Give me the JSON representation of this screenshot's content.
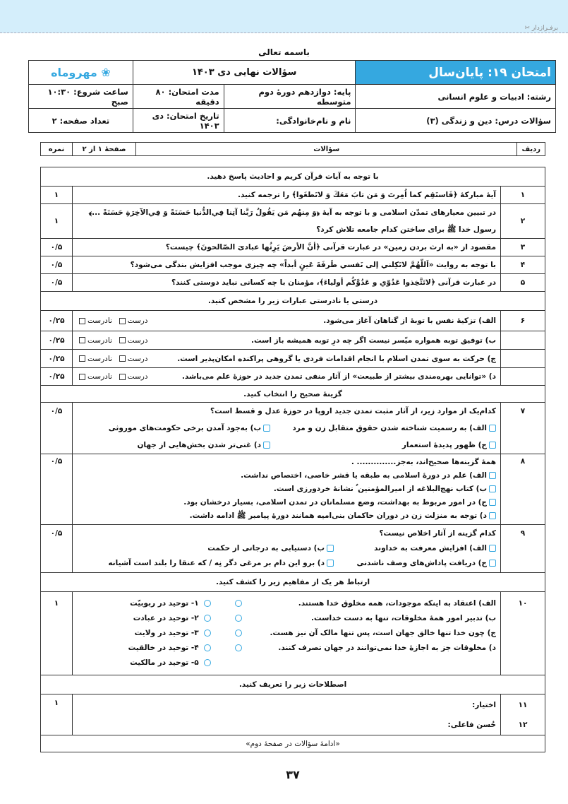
{
  "top_band": {
    "cut_label": "برفـرازدار",
    "icon": "scissors-icon"
  },
  "bismillah": "باسمه تعالی",
  "header": {
    "exam_title": "امتحان ۱۹: پایان‌سال",
    "subtitle": "سؤالات نهایی دی ۱۴۰۳",
    "logo": "مهروماه",
    "field": "رشته: ادبیات و علوم انسانی",
    "grade": "پایه: دوازدهم دورهٔ دوم متوسطه",
    "duration": "مدت امتحان: ۸۰ دقیقه",
    "start_time": "ساعت شروع: ۱۰:۳۰ صبح",
    "course": "سؤالات درس: دین و زندگی (۳)",
    "name": "نام و نام‌خانوادگی:",
    "date": "تاریخ امتحان: دی ۱۴۰۳",
    "pages": "تعداد صفحه: ۲"
  },
  "columns": {
    "row": "ردیف",
    "questions": "سؤالات",
    "page": "صفحهٔ ۱ از ۲",
    "score": "نمره"
  },
  "sections": {
    "s1": "با توجه به آیات قرآن کریم و احادیث پاسخ دهید.",
    "s2": "درستی یا نادرستی عبارات زیر را مشخص کنید.",
    "s3": "گزینهٔ صحیح را انتخاب کنید.",
    "s4": "ارتباط هر یک از مفاهیم زیر را کشف کنید.",
    "s5": "اصطلاحات زیر را تعریف کنید."
  },
  "tf_labels": {
    "true": "درست",
    "false": "نادرست"
  },
  "questions": {
    "q1": {
      "n": "۱",
      "text": "آیهٔ مبارکهٔ ﴿فَاستَقِم کما اُمِرتَ وَ مَن تابَ مَعَكَ وَ لاتَطغَوا﴾ را ترجمه کنید.",
      "score": "۱"
    },
    "q2": {
      "n": "۲",
      "text": "در تبیین معیارهای تمدّن اسلامی و با توجه به آیهٔ ﴿وَ مِنهُم مَن یَقُولُ رَبَّنا آتِنا فِي‌الدُّنیا حَسَنَةً وَ فِي‌الآخِرَةِ حَسَنَةً ...﴾ رسول خدا ﷺ برای ساختن کدام جامعه تلاش کرد؟",
      "score": "۱"
    },
    "q3": {
      "n": "۳",
      "text": "مقصود از «به ارث بردن زمین» در عبارت قرآنی ﴿أنَّ الأرضَ یَرِثُها عبادیَ الصّالحونَ﴾ چیست؟",
      "score": "۰/۵"
    },
    "q4": {
      "n": "۴",
      "text": "با توجه به روایت «اَللّهُمَّ لاتَکِلني إلی نَفسي طَرفَةَ عَینٍ أبداً» چه چیزی موجب افزایش بندگی می‌شود؟",
      "score": "۰/۵"
    },
    "q5": {
      "n": "۵",
      "text": "در عبارت قرآنی ﴿لاتَتَّخِذوا عَدُوّي و عَدُوَّکُم أولیاءَ﴾، مؤمنان با چه کسانی نباید دوستی کنند؟",
      "score": "۰/۵"
    },
    "q6": {
      "n": "۶",
      "items": [
        {
          "text": "الف) تزکیهٔ نفس با توبهٔ از گناهان آغاز می‌شود.",
          "score": "۰/۲۵"
        },
        {
          "text": "ب) توفیق توبه همواره میّسر نیست اگر چه درِ توبه همیشه باز است.",
          "score": "۰/۲۵"
        },
        {
          "text": "ج) حرکت به سوی تمدن اسلام با انجام اقدامات فردی یا گروهی پراکنده امکان‌پذیر است.",
          "score": "۰/۲۵"
        },
        {
          "text": "د) «توانایی بهره‌مندی بیشتر از طبیعت» از آثار منفی تمدن جدید در حوزهٔ علم می‌باشد.",
          "score": "۰/۲۵"
        }
      ]
    },
    "q7": {
      "n": "۷",
      "text": "کدام‌یک از موارد زیر، از آثار مثبت تمدن جدید اروپا در حوزهٔ عدل و قسط است؟",
      "score": "۰/۵",
      "options": [
        "الف) به رسمیت شناخته شدن حقوق متقابل زن و مرد",
        "ب) به‌جود آمدن برخی حکومت‌های موروثی",
        "ج) ظهور پدیدهٔ استعمار",
        "د) غنی‌تر شدن بخش‌هایی از جهان"
      ]
    },
    "q8": {
      "n": "۸",
      "text": "همهٔ گزینه‌ها صحیح‌اند، به‌جز.............. .",
      "score": "۰/۵",
      "options": [
        "الف) علم در دورهٔ اسلامی به طبقه یا قشر خاصی، اختصاص نداشت.",
        "ب) کتاب نهج‌البلاغه از امیرالمؤمنین ؑ نشانهٔ خردورزی است.",
        "ج) در امور مربوط به بهداشت، وضع مسلمانان در تمدن اسلامی، بسیار درخشان بود.",
        "د) توجه به منزلت زن در دوران حاکمان بنی‌امیه همانند دورهٔ پیامبر ﷺ ادامه داشت."
      ]
    },
    "q9": {
      "n": "۹",
      "text": "کدام گزینه از آثار اخلاص نیست؟",
      "score": "۰/۵",
      "options": [
        "الف) افزایش معرفت به خداوند",
        "ب) دستیابی به درجاتی از حکمت",
        "ج) دریافت پاداش‌های وصف ناشدنی",
        "د) برو این دام بر مرغی دگر نِه / که عنقا را بلند است آشیانه"
      ]
    },
    "q10": {
      "n": "۱۰",
      "score": "۱",
      "left": [
        "الف) اعتقاد به اینکه موجودات، همه مخلوق خدا هستند.",
        "ب) تدبیر امور همهٔ مخلوقات، تنها به دست خداست.",
        "ج) چون خدا تنها خالق جهان است، پس تنها مالک آن نیز هست.",
        "د) مخلوقات جز به اجازهٔ خدا نمی‌توانند در جهان تصرف کنند."
      ],
      "right": [
        "۱- توحید در ربوبیّت",
        "۲- توحید در عبادت",
        "۳- توحید در ولایت",
        "۴- توحید در خالقیت",
        "۵- توحید در مالکیت"
      ]
    },
    "q11": {
      "n": "۱۱",
      "text": "اختیار:",
      "score": "۱"
    },
    "q12": {
      "n": "۱۲",
      "text": "حُسن فاعلی:"
    }
  },
  "footer_note": "«ادامهٔ سؤالات در صفحهٔ دوم»",
  "page_number": "۳۷",
  "colors": {
    "accent": "#35a8e0",
    "band": "#d4eefb"
  }
}
